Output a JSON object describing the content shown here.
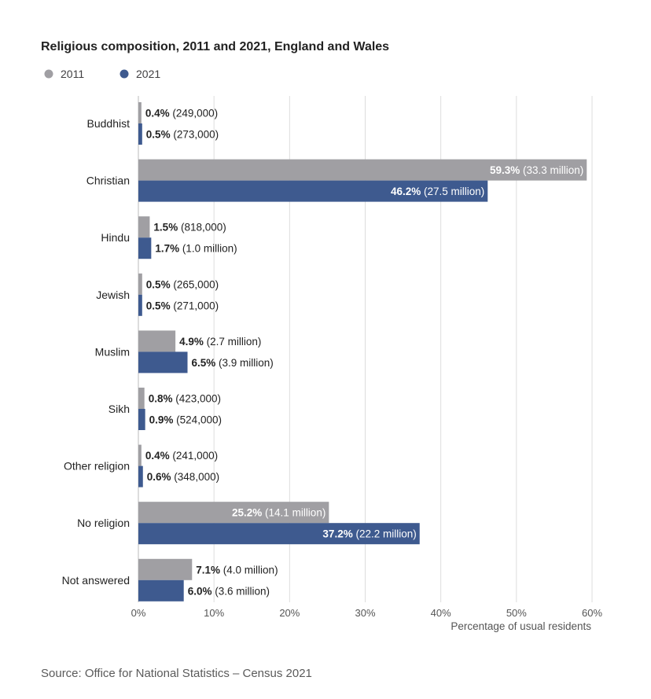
{
  "chart_data": {
    "type": "bar",
    "orientation": "horizontal",
    "title": "Religious composition, 2011 and 2021, England and Wales",
    "xlabel": "Percentage of usual residents",
    "ylabel": "",
    "xlim": [
      0,
      60
    ],
    "x_ticks": [
      "0%",
      "10%",
      "20%",
      "30%",
      "40%",
      "50%",
      "60%"
    ],
    "grid": true,
    "legend_position": "top-left",
    "categories": [
      "Buddhist",
      "Christian",
      "Hindu",
      "Jewish",
      "Muslim",
      "Sikh",
      "Other religion",
      "No religion",
      "Not answered"
    ],
    "series": [
      {
        "name": "2011",
        "color": "#a09fa3",
        "values": [
          0.4,
          59.3,
          1.5,
          0.5,
          4.9,
          0.8,
          0.4,
          25.2,
          7.1
        ],
        "pct_labels": [
          "0.4%",
          "59.3%",
          "1.5%",
          "0.5%",
          "4.9%",
          "0.8%",
          "0.4%",
          "25.2%",
          "7.1%"
        ],
        "count_labels": [
          "(249,000)",
          "(33.3 million)",
          "(818,000)",
          "(265,000)",
          "(2.7 million)",
          "(423,000)",
          "(241,000)",
          "(14.1 million)",
          "(4.0 million)"
        ]
      },
      {
        "name": "2021",
        "color": "#3e5a8f",
        "values": [
          0.5,
          46.2,
          1.7,
          0.5,
          6.5,
          0.9,
          0.6,
          37.2,
          6.0
        ],
        "pct_labels": [
          "0.5%",
          "46.2%",
          "1.7%",
          "0.5%",
          "6.5%",
          "0.9%",
          "0.6%",
          "37.2%",
          "6.0%"
        ],
        "count_labels": [
          "(273,000)",
          "(27.5 million)",
          "(1.0 million)",
          "(271,000)",
          "(3.9 million)",
          "(524,000)",
          "(348,000)",
          "(22.2 million)",
          "(3.6 million)"
        ]
      }
    ],
    "source": "Source: Office for National Statistics – Census 2021"
  }
}
